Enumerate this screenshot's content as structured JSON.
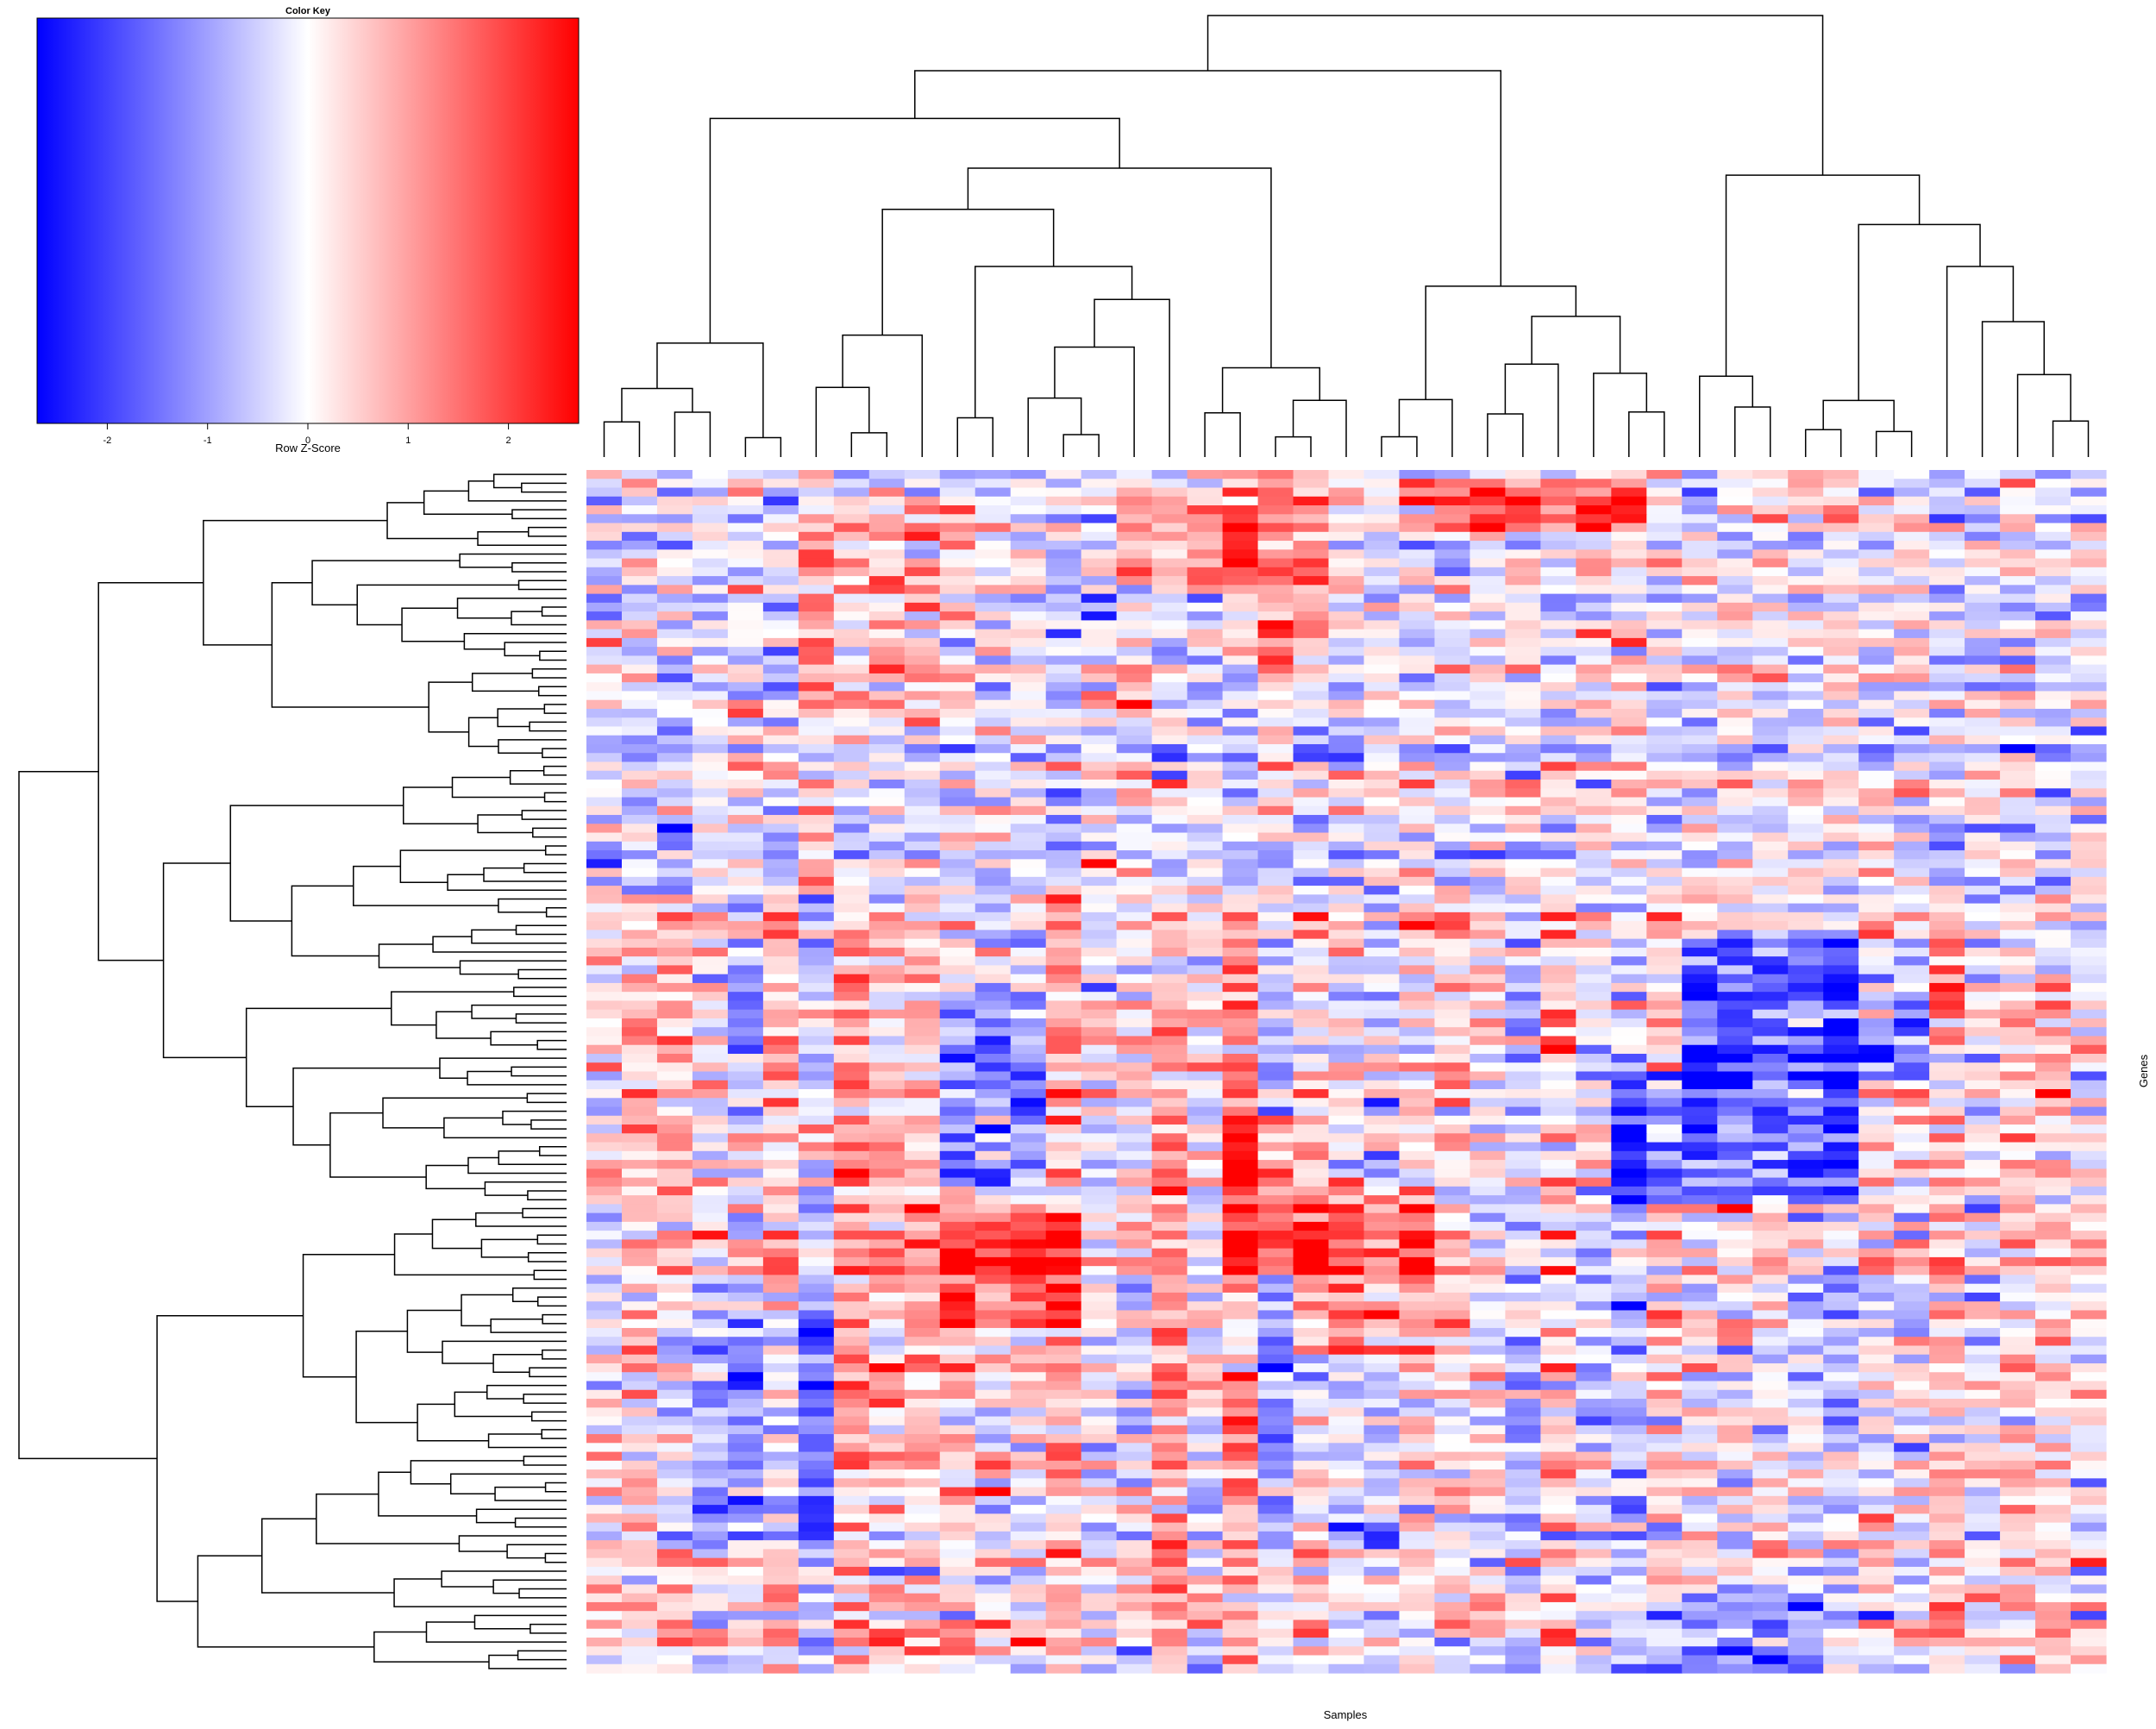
{
  "chart_data": {
    "type": "heatmap",
    "title": "",
    "xlabel": "Samples",
    "ylabel": "Genes",
    "n_columns": 43,
    "n_rows": 136,
    "clustering": {
      "rows": "dendrogram-left",
      "columns": "dendrogram-top"
    },
    "color_key": {
      "title": "Color Key",
      "xlabel": "Row Z-Score",
      "range": [
        -2.7,
        2.7
      ],
      "ticks": [
        -2,
        -1,
        0,
        1,
        2
      ],
      "tick_labels": [
        "-2",
        "-1",
        "0",
        "1",
        "2"
      ],
      "low_color": "#0000ff",
      "mid_color": "#ffffff",
      "high_color": "#ff0000"
    }
  }
}
